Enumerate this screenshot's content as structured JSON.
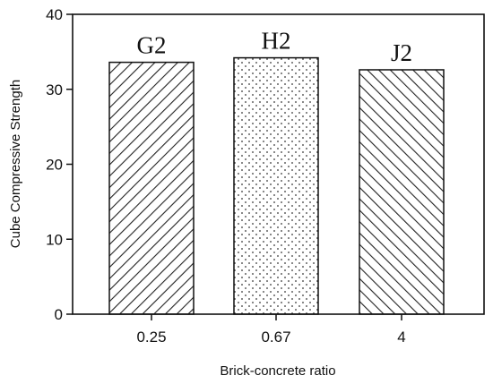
{
  "chart_data": {
    "type": "bar",
    "xlabel": "Brick-concrete ratio",
    "ylabel": "Cube Compressive Strength",
    "ylim": [
      0,
      40
    ],
    "yticks": [
      0,
      10,
      20,
      30,
      40
    ],
    "categories": [
      "0.25",
      "0.67",
      "4"
    ],
    "values": [
      33.6,
      34.2,
      32.6
    ],
    "bar_labels": [
      "G2",
      "H2",
      "J2"
    ],
    "patterns": [
      "hatch-right",
      "dots",
      "hatch-left"
    ],
    "grid": false
  }
}
